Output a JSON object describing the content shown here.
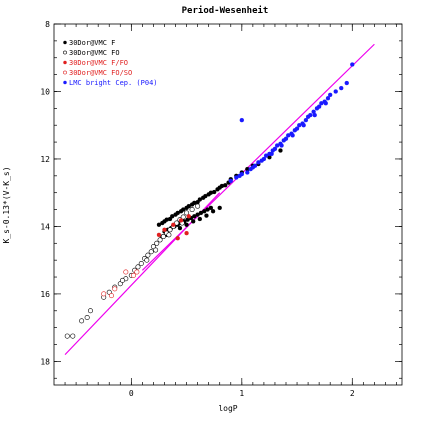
{
  "chart_data": {
    "type": "scatter",
    "title": "Period-Wesenheit",
    "xlabel": "logP",
    "ylabel": "K_s-0.13*(V-K_s)",
    "xlim": [
      -0.7,
      2.45
    ],
    "ylim": [
      18.7,
      8
    ],
    "y_inverted": true,
    "x_ticks": [
      0,
      1,
      2
    ],
    "y_ticks": [
      8,
      10,
      12,
      14,
      16,
      18
    ],
    "x_minor_step": 0.1,
    "y_minor_step": 0.5,
    "legend_position": "top-left",
    "colors": {
      "black": "#000000",
      "red": "#e02020",
      "blue": "#1a1aff",
      "magenta": "#ee00ee"
    },
    "legend": [
      {
        "label": "30Dor@VMC F",
        "marker": "filled",
        "color": "#000000"
      },
      {
        "label": "30Dor@VMC FO",
        "marker": "open",
        "color": "#000000"
      },
      {
        "label": "30Dor@VMC F/FO",
        "marker": "filled",
        "color": "#e02020"
      },
      {
        "label": "30Dor@VMC FO/SO",
        "marker": "open",
        "color": "#e02020"
      },
      {
        "label": "LMC bright Cep. (P04)",
        "marker": "filled",
        "color": "#1a1aff"
      }
    ],
    "series": [
      {
        "name": "30Dor@VMC F",
        "marker": "filled",
        "color": "#000000",
        "points": [
          [
            0.25,
            13.95
          ],
          [
            0.28,
            13.9
          ],
          [
            0.3,
            13.85
          ],
          [
            0.32,
            13.8
          ],
          [
            0.35,
            13.78
          ],
          [
            0.37,
            13.7
          ],
          [
            0.4,
            13.65
          ],
          [
            0.42,
            13.6
          ],
          [
            0.45,
            13.55
          ],
          [
            0.47,
            13.5
          ],
          [
            0.5,
            13.45
          ],
          [
            0.52,
            13.4
          ],
          [
            0.55,
            13.35
          ],
          [
            0.57,
            13.3
          ],
          [
            0.6,
            13.28
          ],
          [
            0.62,
            13.2
          ],
          [
            0.65,
            13.15
          ],
          [
            0.67,
            13.1
          ],
          [
            0.7,
            13.05
          ],
          [
            0.72,
            13.0
          ],
          [
            0.75,
            12.98
          ],
          [
            0.78,
            12.9
          ],
          [
            0.8,
            12.85
          ],
          [
            0.82,
            12.8
          ],
          [
            0.85,
            12.78
          ],
          [
            0.88,
            12.7
          ],
          [
            0.3,
            14.15
          ],
          [
            0.33,
            14.1
          ],
          [
            0.36,
            14.05
          ],
          [
            0.39,
            14.0
          ],
          [
            0.42,
            13.95
          ],
          [
            0.45,
            13.9
          ],
          [
            0.48,
            13.85
          ],
          [
            0.51,
            13.8
          ],
          [
            0.54,
            13.75
          ],
          [
            0.57,
            13.7
          ],
          [
            0.6,
            13.65
          ],
          [
            0.63,
            13.6
          ],
          [
            0.66,
            13.55
          ],
          [
            0.69,
            13.5
          ],
          [
            0.72,
            13.45
          ],
          [
            0.28,
            14.3
          ],
          [
            0.32,
            14.25
          ],
          [
            0.44,
            14.05
          ],
          [
            0.5,
            13.95
          ],
          [
            0.56,
            13.85
          ],
          [
            0.62,
            13.78
          ],
          [
            0.68,
            13.68
          ],
          [
            0.74,
            13.55
          ],
          [
            0.8,
            13.45
          ],
          [
            0.9,
            12.6
          ],
          [
            0.95,
            12.5
          ],
          [
            1.0,
            12.4
          ],
          [
            1.05,
            12.3
          ],
          [
            1.1,
            12.2
          ],
          [
            1.15,
            12.15
          ],
          [
            1.25,
            11.95
          ],
          [
            1.35,
            11.75
          ]
        ]
      },
      {
        "name": "30Dor@VMC FO",
        "marker": "open",
        "color": "#000000",
        "points": [
          [
            -0.58,
            17.25
          ],
          [
            -0.53,
            17.25
          ],
          [
            -0.45,
            16.8
          ],
          [
            -0.4,
            16.7
          ],
          [
            -0.37,
            16.5
          ],
          [
            -0.25,
            16.1
          ],
          [
            -0.2,
            15.95
          ],
          [
            -0.15,
            15.8
          ],
          [
            -0.1,
            15.7
          ],
          [
            -0.05,
            15.55
          ],
          [
            0.0,
            15.45
          ],
          [
            0.03,
            15.3
          ],
          [
            0.06,
            15.2
          ],
          [
            0.09,
            15.1
          ],
          [
            0.12,
            14.95
          ],
          [
            0.15,
            14.85
          ],
          [
            0.18,
            14.75
          ],
          [
            0.2,
            14.6
          ],
          [
            0.23,
            14.5
          ],
          [
            0.26,
            14.4
          ],
          [
            0.29,
            14.3
          ],
          [
            0.32,
            14.2
          ],
          [
            0.35,
            14.1
          ],
          [
            0.38,
            14.0
          ],
          [
            0.41,
            13.9
          ],
          [
            0.44,
            13.8
          ],
          [
            0.47,
            13.72
          ],
          [
            0.5,
            13.6
          ],
          [
            0.55,
            13.5
          ],
          [
            0.6,
            13.4
          ],
          [
            0.14,
            15.0
          ],
          [
            0.22,
            14.7
          ],
          [
            0.34,
            14.25
          ],
          [
            0.46,
            13.9
          ],
          [
            -0.08,
            15.6
          ]
        ]
      },
      {
        "name": "30Dor@VMC F/FO",
        "marker": "filled",
        "color": "#e02020",
        "points": [
          [
            0.3,
            14.1
          ],
          [
            0.38,
            13.95
          ],
          [
            0.45,
            13.82
          ],
          [
            0.52,
            13.7
          ],
          [
            0.25,
            14.25
          ],
          [
            0.42,
            14.35
          ],
          [
            0.5,
            14.2
          ]
        ]
      },
      {
        "name": "30Dor@VMC FO/SO",
        "marker": "open",
        "color": "#e02020",
        "points": [
          [
            -0.25,
            16.0
          ],
          [
            -0.15,
            15.85
          ],
          [
            -0.05,
            15.35
          ],
          [
            0.05,
            15.35
          ],
          [
            -0.18,
            16.05
          ],
          [
            0.02,
            15.45
          ]
        ]
      },
      {
        "name": "LMC bright Cep. (P04)",
        "marker": "filled",
        "color": "#1a1aff",
        "points": [
          [
            0.95,
            12.55
          ],
          [
            1.0,
            12.45
          ],
          [
            1.05,
            12.4
          ],
          [
            1.08,
            12.3
          ],
          [
            1.12,
            12.2
          ],
          [
            1.15,
            12.1
          ],
          [
            1.2,
            12.0
          ],
          [
            1.22,
            11.9
          ],
          [
            1.25,
            11.85
          ],
          [
            1.28,
            11.75
          ],
          [
            1.3,
            11.7
          ],
          [
            1.32,
            11.6
          ],
          [
            1.35,
            11.55
          ],
          [
            1.38,
            11.45
          ],
          [
            1.4,
            11.4
          ],
          [
            1.42,
            11.3
          ],
          [
            1.45,
            11.25
          ],
          [
            1.48,
            11.15
          ],
          [
            1.5,
            11.1
          ],
          [
            1.52,
            11.0
          ],
          [
            1.55,
            10.95
          ],
          [
            1.58,
            10.85
          ],
          [
            1.6,
            10.75
          ],
          [
            1.62,
            10.7
          ],
          [
            1.65,
            10.6
          ],
          [
            1.68,
            10.5
          ],
          [
            1.7,
            10.45
          ],
          [
            1.72,
            10.35
          ],
          [
            1.75,
            10.3
          ],
          [
            1.78,
            10.2
          ],
          [
            1.8,
            10.1
          ],
          [
            1.85,
            10.0
          ],
          [
            1.9,
            9.9
          ],
          [
            1.95,
            9.75
          ],
          [
            2.0,
            9.2
          ],
          [
            1.1,
            12.25
          ],
          [
            1.18,
            12.05
          ],
          [
            1.27,
            11.85
          ],
          [
            1.36,
            11.6
          ],
          [
            1.46,
            11.3
          ],
          [
            1.56,
            11.0
          ],
          [
            1.66,
            10.7
          ],
          [
            1.76,
            10.35
          ],
          [
            0.9,
            12.65
          ],
          [
            0.98,
            12.5
          ],
          [
            1.0,
            10.85
          ]
        ]
      }
    ],
    "fit_lines": [
      {
        "color": "#ee00ee",
        "x": [
          -0.6,
          0.8
        ],
        "y": [
          17.8,
          13.0
        ]
      },
      {
        "color": "#ee00ee",
        "x": [
          0.1,
          2.2
        ],
        "y": [
          15.3,
          8.6
        ]
      }
    ]
  }
}
